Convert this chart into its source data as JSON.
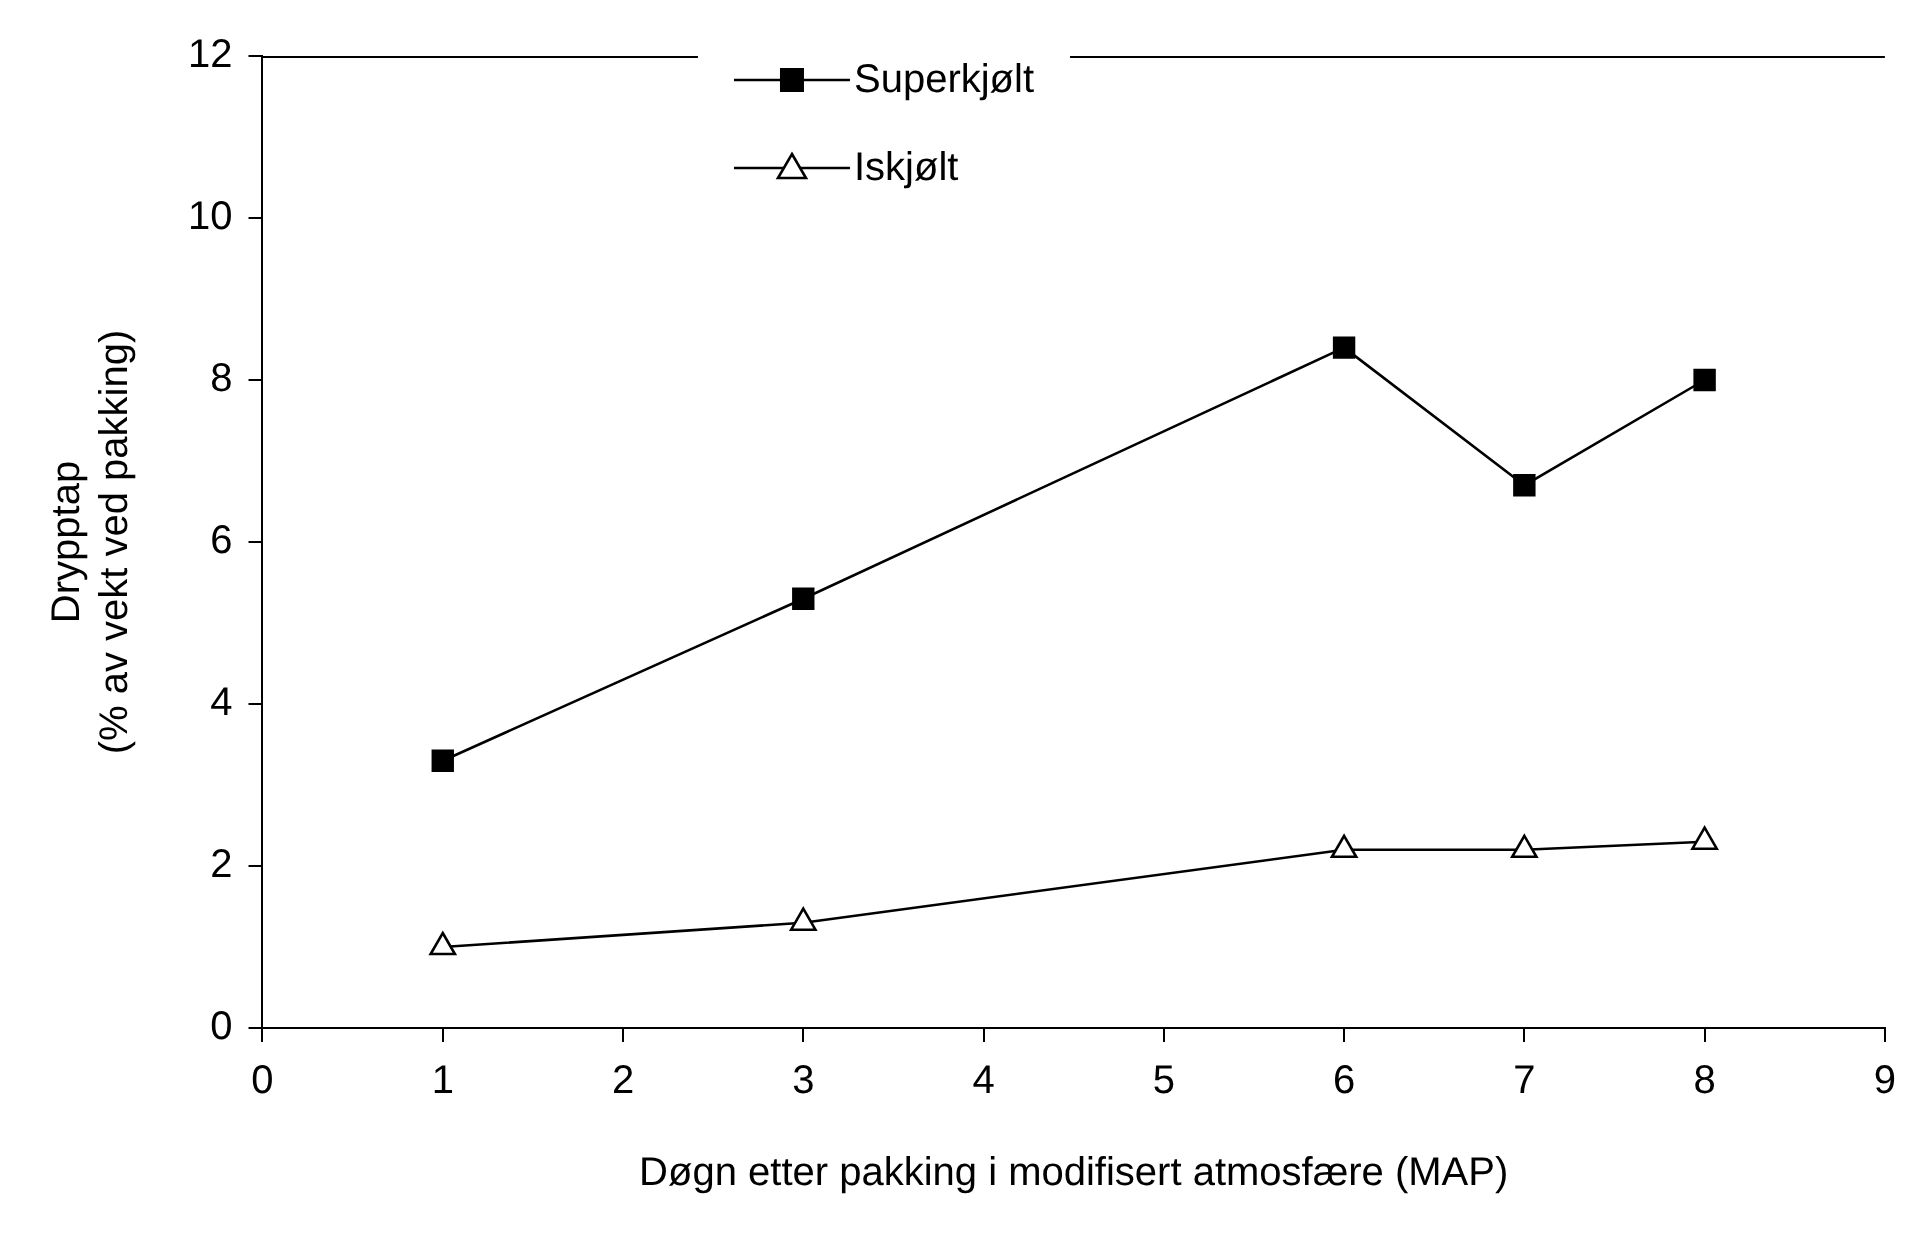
{
  "chart_data": {
    "type": "line",
    "xlabel": "Døgn etter pakking i modifisert atmosfære (MAP)",
    "ylabel": "Drypptap\n(% av vekt ved pakking)",
    "xlim": [
      0,
      9
    ],
    "xticks": [
      0,
      1,
      2,
      3,
      4,
      5,
      6,
      7,
      8,
      9
    ],
    "ylim": [
      0,
      12
    ],
    "yticks": [
      0,
      2,
      4,
      6,
      8,
      10,
      12
    ],
    "grid": false,
    "legend": "top",
    "line_style": "solid",
    "series": [
      {
        "name": "Superkjølt",
        "color": "#000000",
        "marker": "square",
        "x": [
          1,
          3,
          6,
          7,
          8
        ],
        "values": [
          3.3,
          5.3,
          8.4,
          6.7,
          8.0
        ]
      },
      {
        "name": "Iskjølt",
        "color": "#000000",
        "marker": "triangle",
        "x": [
          1,
          3,
          6,
          7,
          8
        ],
        "values": [
          1.0,
          1.3,
          2.2,
          2.2,
          2.3
        ]
      }
    ]
  }
}
